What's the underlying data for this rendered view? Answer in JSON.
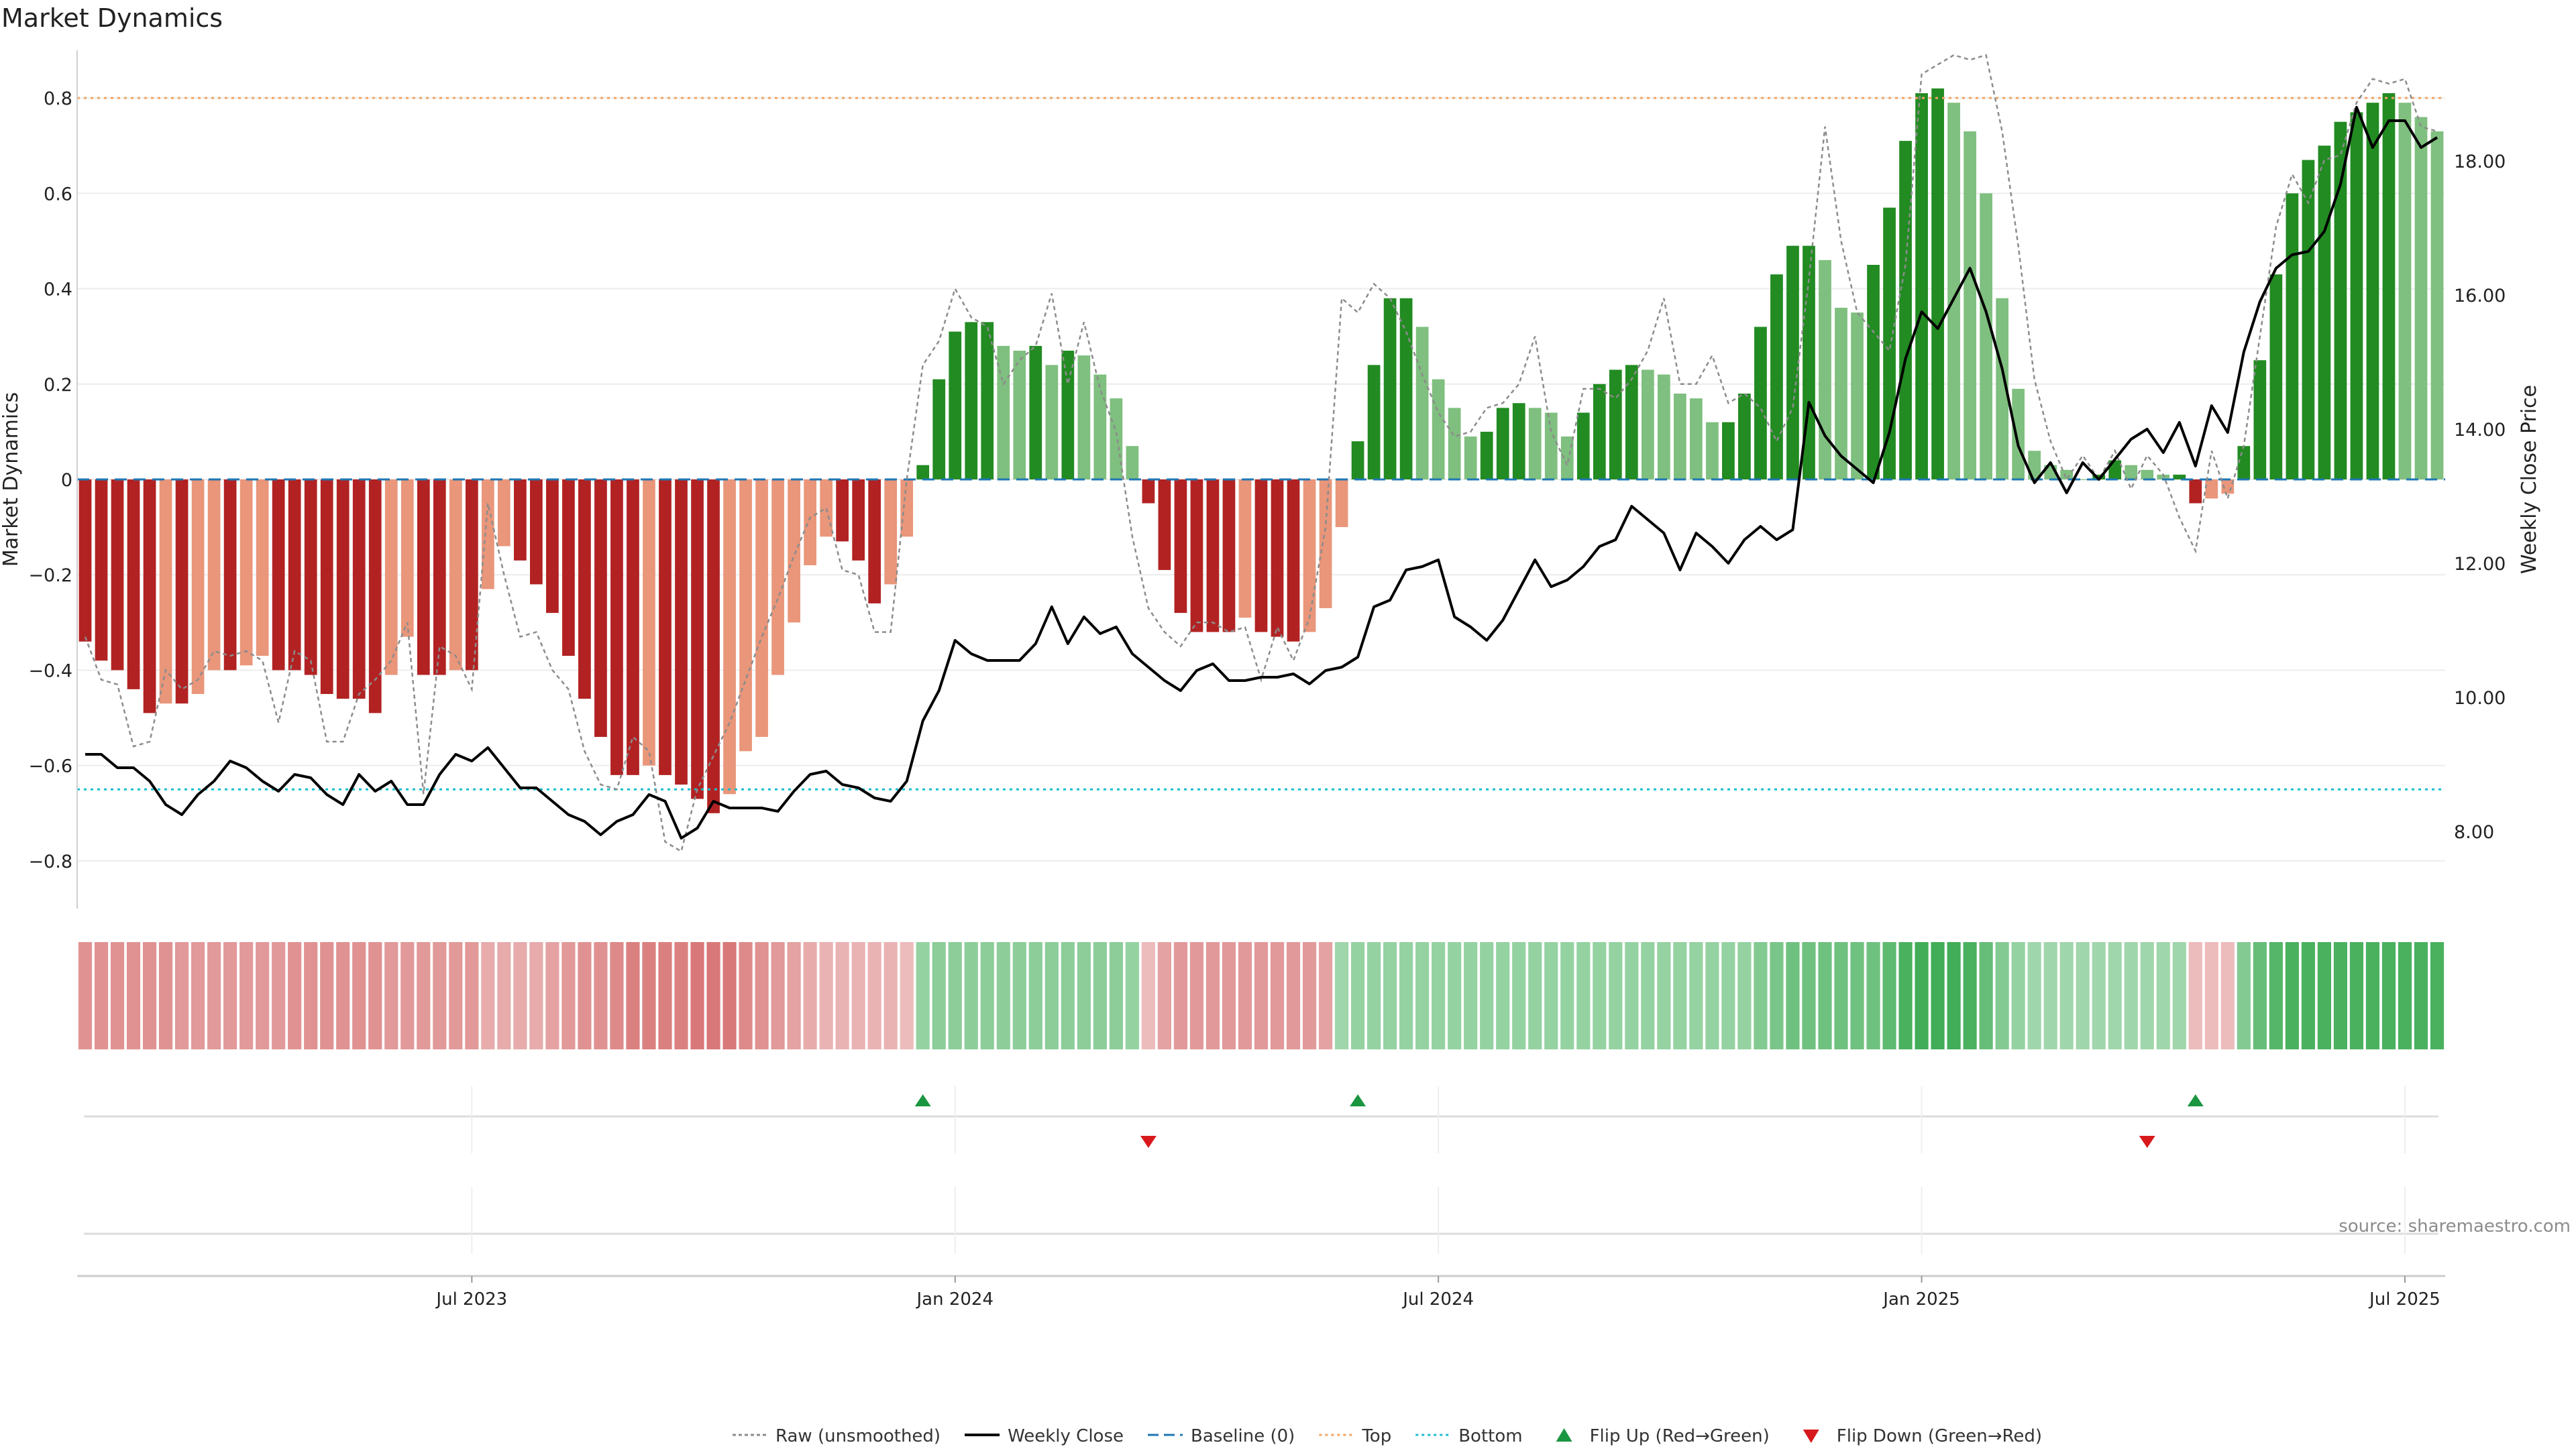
{
  "title": "Market Dynamics",
  "source": "source: sharemaestro.com",
  "colors": {
    "green_dark": "#228b22",
    "green_light": "#7fbf7f",
    "red_dark": "#b22222",
    "red_light": "#e9967a",
    "close_line": "#000000",
    "raw_line": "#8c8c8c",
    "baseline": "#1f77b4",
    "top_line": "#f4a460",
    "bottom_line": "#17becf",
    "flip_up": "#1a9641",
    "flip_down": "#d7191c"
  },
  "legend": [
    {
      "label": "Raw (unsmoothed)",
      "kind": "dotted-grey"
    },
    {
      "label": "Weekly Close",
      "kind": "solid-black"
    },
    {
      "label": "Baseline (0)",
      "kind": "dashed-blue"
    },
    {
      "label": "Top",
      "kind": "dotted-orange"
    },
    {
      "label": "Bottom",
      "kind": "dotted-cyan"
    },
    {
      "label": "Flip Up (Red→Green)",
      "kind": "triangle-up"
    },
    {
      "label": "Flip Down (Green→Red)",
      "kind": "triangle-down"
    }
  ],
  "chart_data": {
    "type": "bar",
    "title": "Market Dynamics",
    "ylabel": "Market Dynamics",
    "y2label": "Weekly Close Price",
    "ylim": [
      -0.9,
      0.9
    ],
    "y_ticks": [
      0.8,
      0.6,
      0.4,
      0.2,
      0,
      -0.2,
      -0.4,
      -0.6,
      -0.8
    ],
    "y_tick_labels": [
      "0.8",
      "0.6",
      "0.4",
      "0.2",
      "0",
      "−0.2",
      "−0.4",
      "−0.6",
      "−0.8"
    ],
    "y2lim": [
      6.85,
      19.65
    ],
    "y2_ticks": [
      18,
      16,
      14,
      12,
      10,
      8
    ],
    "y2_tick_labels": [
      "18.00",
      "16.00",
      "14.00",
      "12.00",
      "10.00",
      "8.00"
    ],
    "x_ticks": [
      "Jul 2023",
      "Jan 2024",
      "Jul 2024",
      "Jan 2025",
      "Jul 2025"
    ],
    "x_tick_positions": [
      24.5,
      54.5,
      84.5,
      114.5,
      144.5
    ],
    "top": 0.8,
    "bottom": -0.65,
    "baseline": 0,
    "grid": true,
    "legend_position": "bottom",
    "series": [
      {
        "name": "Market Dynamics",
        "values": [
          -0.34,
          -0.38,
          -0.4,
          -0.44,
          -0.49,
          -0.47,
          -0.47,
          -0.45,
          -0.4,
          -0.4,
          -0.39,
          -0.37,
          -0.4,
          -0.4,
          -0.41,
          -0.45,
          -0.46,
          -0.46,
          -0.49,
          -0.41,
          -0.33,
          -0.41,
          -0.41,
          -0.4,
          -0.4,
          -0.23,
          -0.14,
          -0.17,
          -0.22,
          -0.28,
          -0.37,
          -0.46,
          -0.54,
          -0.62,
          -0.62,
          -0.6,
          -0.62,
          -0.64,
          -0.67,
          -0.7,
          -0.66,
          -0.57,
          -0.54,
          -0.41,
          -0.3,
          -0.18,
          -0.12,
          -0.13,
          -0.17,
          -0.26,
          -0.22,
          -0.12,
          0.03,
          0.21,
          0.31,
          0.33,
          0.33,
          0.28,
          0.27,
          0.28,
          0.24,
          0.27,
          0.26,
          0.22,
          0.17,
          0.07,
          -0.05,
          -0.19,
          -0.28,
          -0.32,
          -0.32,
          -0.32,
          -0.29,
          -0.32,
          -0.33,
          -0.34,
          -0.32,
          -0.27,
          -0.1,
          0.08,
          0.24,
          0.38,
          0.38,
          0.32,
          0.21,
          0.15,
          0.09,
          0.1,
          0.15,
          0.16,
          0.15,
          0.14,
          0.09,
          0.14,
          0.2,
          0.23,
          0.24,
          0.23,
          0.22,
          0.18,
          0.17,
          0.12,
          0.12,
          0.18,
          0.32,
          0.43,
          0.49,
          0.49,
          0.46,
          0.36,
          0.35,
          0.45,
          0.57,
          0.71,
          0.81,
          0.82,
          0.79,
          0.73,
          0.6,
          0.38,
          0.19,
          0.06,
          0.03,
          0.02,
          0.0,
          0.01,
          0.04,
          0.03,
          0.02,
          0.01,
          0.01,
          -0.05,
          -0.04,
          -0.03,
          0.07,
          0.25,
          0.43,
          0.6,
          0.67,
          0.7,
          0.75,
          0.77,
          0.79,
          0.81,
          0.79,
          0.76,
          0.73
        ]
      },
      {
        "name": "Raw (unsmoothed)",
        "values": [
          -0.33,
          -0.42,
          -0.43,
          -0.56,
          -0.55,
          -0.4,
          -0.44,
          -0.42,
          -0.36,
          -0.37,
          -0.36,
          -0.38,
          -0.51,
          -0.36,
          -0.38,
          -0.55,
          -0.55,
          -0.45,
          -0.42,
          -0.38,
          -0.3,
          -0.66,
          -0.35,
          -0.37,
          -0.44,
          -0.05,
          -0.2,
          -0.33,
          -0.32,
          -0.4,
          -0.44,
          -0.57,
          -0.64,
          -0.65,
          -0.54,
          -0.57,
          -0.76,
          -0.78,
          -0.65,
          -0.58,
          -0.51,
          -0.42,
          -0.33,
          -0.25,
          -0.16,
          -0.08,
          -0.06,
          -0.19,
          -0.2,
          -0.32,
          -0.32,
          0.0,
          0.24,
          0.29,
          0.4,
          0.34,
          0.32,
          0.2,
          0.25,
          0.28,
          0.39,
          0.2,
          0.33,
          0.19,
          0.1,
          -0.12,
          -0.27,
          -0.32,
          -0.35,
          -0.3,
          -0.3,
          -0.32,
          -0.31,
          -0.42,
          -0.31,
          -0.38,
          -0.29,
          -0.1,
          0.38,
          0.35,
          0.41,
          0.38,
          0.31,
          0.22,
          0.14,
          0.09,
          0.1,
          0.15,
          0.16,
          0.2,
          0.3,
          0.1,
          0.03,
          0.19,
          0.19,
          0.17,
          0.21,
          0.27,
          0.38,
          0.2,
          0.2,
          0.26,
          0.16,
          0.18,
          0.15,
          0.08,
          0.15,
          0.42,
          0.74,
          0.5,
          0.35,
          0.31,
          0.27,
          0.45,
          0.85,
          0.87,
          0.89,
          0.88,
          0.89,
          0.73,
          0.49,
          0.21,
          0.08,
          0.0,
          0.05,
          0.0,
          0.06,
          -0.02,
          0.05,
          0.01,
          -0.08,
          -0.15,
          0.06,
          -0.04,
          0.07,
          0.3,
          0.53,
          0.64,
          0.58,
          0.67,
          0.68,
          0.79,
          0.84,
          0.83,
          0.84,
          0.74,
          0.73
        ]
      },
      {
        "name": "Weekly Close",
        "values": [
          9.15,
          9.15,
          8.95,
          8.95,
          8.75,
          8.4,
          8.25,
          8.55,
          8.75,
          9.05,
          8.95,
          8.75,
          8.6,
          8.85,
          8.8,
          8.55,
          8.4,
          8.85,
          8.6,
          8.75,
          8.4,
          8.4,
          8.85,
          9.15,
          9.05,
          9.25,
          8.95,
          8.65,
          8.65,
          8.45,
          8.25,
          8.15,
          7.95,
          8.15,
          8.25,
          8.55,
          8.45,
          7.9,
          8.05,
          8.45,
          8.35,
          8.35,
          8.35,
          8.3,
          8.6,
          8.85,
          8.9,
          8.7,
          8.65,
          8.5,
          8.45,
          8.75,
          9.65,
          10.1,
          10.85,
          10.65,
          10.55,
          10.55,
          10.55,
          10.8,
          11.35,
          10.8,
          11.2,
          10.95,
          11.05,
          10.65,
          10.45,
          10.25,
          10.1,
          10.4,
          10.5,
          10.25,
          10.25,
          10.3,
          10.3,
          10.35,
          10.2,
          10.4,
          10.45,
          10.6,
          11.35,
          11.45,
          11.9,
          11.95,
          12.05,
          11.2,
          11.05,
          10.85,
          11.15,
          11.6,
          12.05,
          11.65,
          11.75,
          11.95,
          12.25,
          12.35,
          12.85,
          12.65,
          12.45,
          11.9,
          12.45,
          12.25,
          12.0,
          12.35,
          12.55,
          12.35,
          12.5,
          14.4,
          13.9,
          13.6,
          13.4,
          13.2,
          13.95,
          15.05,
          15.75,
          15.5,
          15.95,
          16.4,
          15.75,
          14.9,
          13.75,
          13.2,
          13.5,
          13.05,
          13.5,
          13.25,
          13.55,
          13.85,
          14.0,
          13.65,
          14.1,
          13.45,
          14.35,
          13.95,
          15.15,
          15.9,
          16.4,
          16.6,
          16.65,
          16.95,
          17.65,
          18.8,
          18.2,
          18.6,
          18.6,
          18.2,
          18.35
        ]
      },
      {
        "name": "Regime Strength",
        "values": [
          -0.45,
          -0.45,
          -0.45,
          -0.45,
          -0.45,
          -0.45,
          -0.4,
          -0.4,
          -0.4,
          -0.4,
          -0.4,
          -0.4,
          -0.4,
          -0.45,
          -0.45,
          -0.45,
          -0.45,
          -0.45,
          -0.45,
          -0.4,
          -0.4,
          -0.4,
          -0.4,
          -0.4,
          -0.4,
          -0.3,
          -0.3,
          -0.3,
          -0.3,
          -0.35,
          -0.4,
          -0.45,
          -0.45,
          -0.5,
          -0.55,
          -0.55,
          -0.55,
          -0.55,
          -0.6,
          -0.6,
          -0.6,
          -0.5,
          -0.45,
          -0.4,
          -0.35,
          -0.3,
          -0.25,
          -0.25,
          -0.25,
          -0.25,
          -0.25,
          -0.2,
          0.35,
          0.4,
          0.4,
          0.4,
          0.4,
          0.4,
          0.4,
          0.4,
          0.4,
          0.4,
          0.4,
          0.4,
          0.4,
          0.35,
          -0.2,
          -0.35,
          -0.4,
          -0.4,
          -0.4,
          -0.4,
          -0.4,
          -0.4,
          -0.4,
          -0.4,
          -0.4,
          -0.35,
          0.3,
          0.35,
          0.35,
          0.35,
          0.35,
          0.35,
          0.35,
          0.35,
          0.35,
          0.35,
          0.35,
          0.35,
          0.35,
          0.35,
          0.35,
          0.35,
          0.35,
          0.35,
          0.35,
          0.35,
          0.35,
          0.35,
          0.35,
          0.35,
          0.35,
          0.35,
          0.45,
          0.5,
          0.55,
          0.55,
          0.55,
          0.55,
          0.55,
          0.55,
          0.65,
          0.75,
          0.8,
          0.8,
          0.8,
          0.75,
          0.6,
          0.45,
          0.35,
          0.3,
          0.3,
          0.3,
          0.3,
          0.3,
          0.3,
          0.3,
          0.3,
          0.3,
          0.3,
          -0.2,
          -0.2,
          -0.2,
          0.45,
          0.6,
          0.7,
          0.75,
          0.75,
          0.75,
          0.75,
          0.75,
          0.75,
          0.75,
          0.75,
          0.75,
          0.75
        ]
      }
    ],
    "flips_up": [
      52,
      79,
      131
    ],
    "flips_down": [
      66,
      128
    ]
  }
}
